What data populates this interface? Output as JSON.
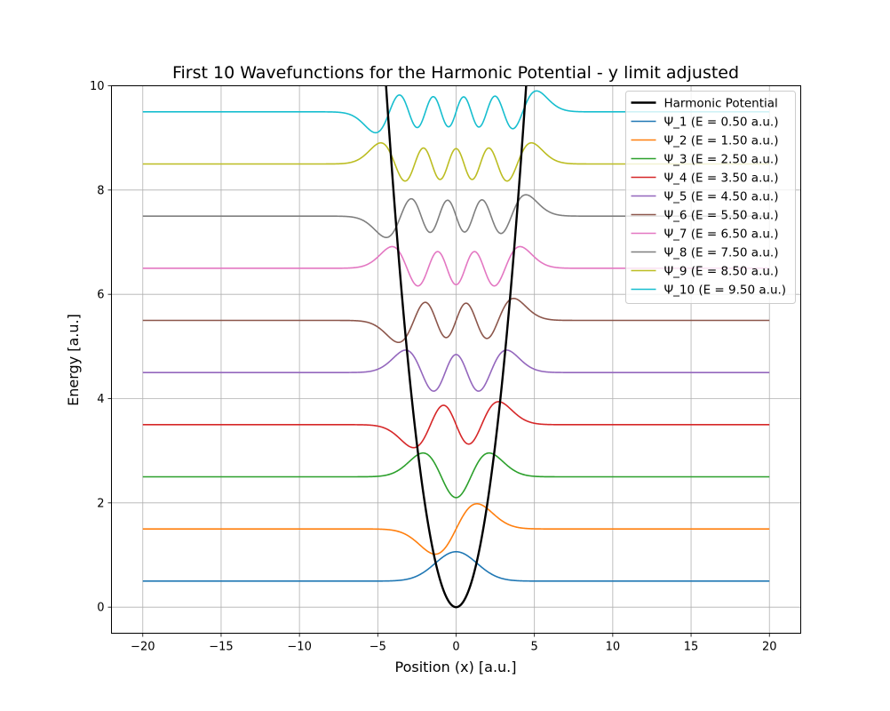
{
  "chart_data": {
    "type": "line",
    "title": "First 10 Wavefunctions for the Harmonic Potential - y limit adjusted",
    "xlabel": "Position (x) [a.u.]",
    "ylabel": "Energy [a.u.]",
    "xlim": [
      -22,
      22
    ],
    "ylim": [
      -0.5,
      10
    ],
    "xticks": [
      -20,
      -15,
      -10,
      -5,
      0,
      5,
      10,
      15,
      20
    ],
    "xtick_labels": [
      "−20",
      "−15",
      "−10",
      "−5",
      "0",
      "5",
      "10",
      "15",
      "20"
    ],
    "yticks": [
      0,
      2,
      4,
      6,
      8,
      10
    ],
    "ytick_labels": [
      "0",
      "2",
      "4",
      "6",
      "8",
      "10"
    ],
    "grid": true,
    "legend_position": "top-right",
    "x_range": [
      -20,
      20
    ],
    "potential": {
      "name": "Harmonic Potential",
      "color": "#000000",
      "formula": "0.5*x^2"
    },
    "series": [
      {
        "name": "Ψ_1 (E = 0.50 a.u.)",
        "n": 0,
        "energy": 0.5,
        "color": "#1f77b4"
      },
      {
        "name": "Ψ_2 (E = 1.50 a.u.)",
        "n": 1,
        "energy": 1.5,
        "color": "#ff7f0e"
      },
      {
        "name": "Ψ_3 (E = 2.50 a.u.)",
        "n": 2,
        "energy": 2.5,
        "color": "#2ca02c"
      },
      {
        "name": "Ψ_4 (E = 3.50 a.u.)",
        "n": 3,
        "energy": 3.5,
        "color": "#d62728"
      },
      {
        "name": "Ψ_5 (E = 4.50 a.u.)",
        "n": 4,
        "energy": 4.5,
        "color": "#9467bd"
      },
      {
        "name": "Ψ_6 (E = 5.50 a.u.)",
        "n": 5,
        "energy": 5.5,
        "color": "#8c564b"
      },
      {
        "name": "Ψ_7 (E = 6.50 a.u.)",
        "n": 6,
        "energy": 6.5,
        "color": "#e377c2"
      },
      {
        "name": "Ψ_8 (E = 7.50 a.u.)",
        "n": 7,
        "energy": 7.5,
        "color": "#7f7f7f"
      },
      {
        "name": "Ψ_9 (E = 8.50 a.u.)",
        "n": 8,
        "energy": 8.5,
        "color": "#bcbd22"
      },
      {
        "name": "Ψ_10 (E = 9.50 a.u.)",
        "n": 9,
        "energy": 9.5,
        "color": "#17becf"
      }
    ]
  }
}
